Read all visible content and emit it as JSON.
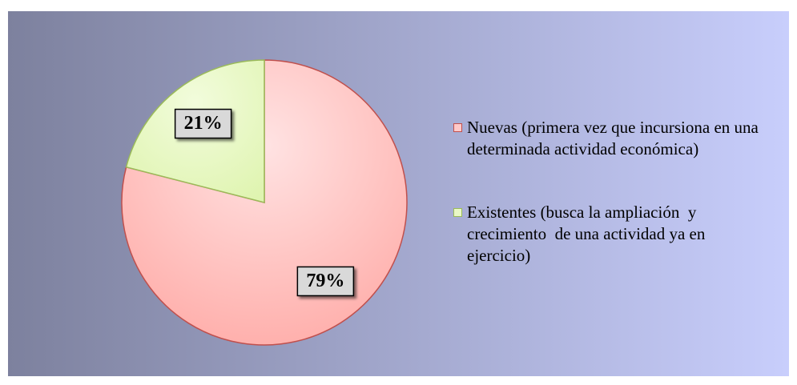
{
  "chart_data": {
    "type": "pie",
    "categories": [
      "Nuevas (primera vez que incursiona en una determinada actividad económica)",
      "Existentes (busca la ampliación  y crecimiento  de una actividad ya en ejercicio)"
    ],
    "values": [
      79,
      21
    ],
    "value_labels": [
      "79%",
      "21%"
    ],
    "colors": [
      "#ffc9c9",
      "#e9f8c6"
    ],
    "legend": "right"
  }
}
